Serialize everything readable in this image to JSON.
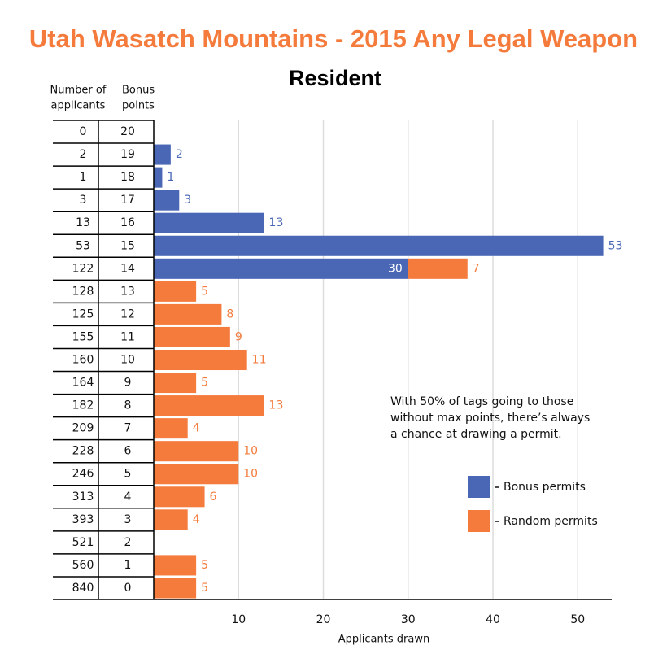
{
  "chart_data": {
    "type": "stacked-barh",
    "title": "Utah Wasatch Mountains - 2015 Any Legal Weapon",
    "subtitle": "Resident",
    "applicants_header": [
      "Number of",
      "applicants"
    ],
    "categories_header": [
      "Bonus",
      "points"
    ],
    "applicants": [
      0,
      2,
      1,
      3,
      13,
      53,
      122,
      128,
      125,
      155,
      160,
      164,
      182,
      209,
      228,
      246,
      313,
      393,
      521,
      560,
      840
    ],
    "categories": [
      "20",
      "19",
      "18",
      "17",
      "16",
      "15",
      "14",
      "13",
      "12",
      "11",
      "10",
      "9",
      "8",
      "7",
      "6",
      "5",
      "4",
      "3",
      "2",
      "1",
      "0"
    ],
    "series": [
      {
        "name": "Bonus permits",
        "color": "#4a67b5",
        "values": [
          null,
          2,
          1,
          3,
          13,
          53,
          30,
          null,
          null,
          null,
          null,
          null,
          null,
          null,
          null,
          null,
          null,
          null,
          null,
          null,
          null
        ]
      },
      {
        "name": "Random permits",
        "color": "#f47b3c",
        "values": [
          null,
          null,
          null,
          null,
          null,
          null,
          7,
          5,
          8,
          9,
          11,
          5,
          13,
          4,
          10,
          10,
          6,
          4,
          null,
          5,
          5
        ]
      }
    ],
    "xlim": [
      0,
      54
    ],
    "xticks": [
      10,
      20,
      30,
      40,
      50
    ],
    "xlabel": "Applicants drawn",
    "grid": true,
    "annotation": [
      "With 50% of tags going to those",
      "without max points, there’s always",
      "a chance at drawing a permit."
    ]
  }
}
